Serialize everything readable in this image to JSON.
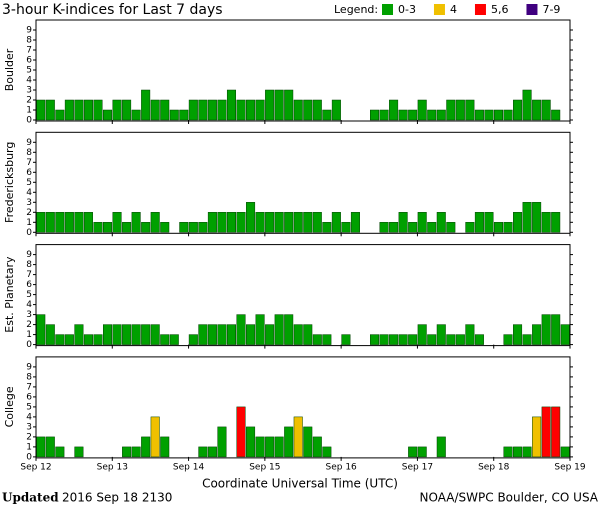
{
  "title": "3-hour K-indices for Last 7 days",
  "legend": {
    "title": "Legend:",
    "items": [
      {
        "label": "0-3",
        "color": "#00a000",
        "levels": [
          0,
          1,
          2,
          3
        ]
      },
      {
        "label": "4",
        "color": "#f0c000",
        "levels": [
          4
        ]
      },
      {
        "label": "5,6",
        "color": "#ff0000",
        "levels": [
          5,
          6
        ]
      },
      {
        "label": "7-9",
        "color": "#400080",
        "levels": [
          7,
          8,
          9
        ]
      }
    ]
  },
  "x_axis": {
    "ticks": [
      "Sep 12",
      "Sep 13",
      "Sep 14",
      "Sep 15",
      "Sep 16",
      "Sep 17",
      "Sep 18",
      "Sep 19"
    ],
    "xlabel": "Coordinate Universal Time (UTC)"
  },
  "chart_data": [
    {
      "type": "bar",
      "ylabel": "Boulder",
      "ylim": [
        0,
        9
      ],
      "yticks": [
        0,
        1,
        2,
        3,
        4,
        5,
        6,
        7,
        8,
        9
      ],
      "values": [
        2,
        2,
        1,
        2,
        2,
        2,
        2,
        1,
        2,
        2,
        1,
        3,
        2,
        2,
        1,
        1,
        2,
        2,
        2,
        2,
        3,
        2,
        2,
        2,
        3,
        3,
        3,
        2,
        2,
        2,
        1,
        2,
        0,
        0,
        0,
        1,
        1,
        2,
        1,
        1,
        2,
        1,
        1,
        2,
        2,
        2,
        1,
        1,
        1,
        1,
        2,
        3,
        2,
        2,
        1,
        0
      ]
    },
    {
      "type": "bar",
      "ylabel": "Fredericksburg",
      "ylim": [
        0,
        9
      ],
      "yticks": [
        0,
        1,
        2,
        3,
        4,
        5,
        6,
        7,
        8,
        9
      ],
      "values": [
        2,
        2,
        2,
        2,
        2,
        2,
        1,
        1,
        2,
        1,
        2,
        1,
        2,
        1,
        0,
        1,
        1,
        1,
        2,
        2,
        2,
        2,
        3,
        2,
        2,
        2,
        2,
        2,
        2,
        2,
        1,
        2,
        1,
        2,
        0,
        0,
        1,
        1,
        2,
        1,
        2,
        1,
        2,
        1,
        0,
        1,
        2,
        2,
        1,
        1,
        2,
        3,
        3,
        2,
        2,
        0
      ]
    },
    {
      "type": "bar",
      "ylabel": "Est. Planetary",
      "ylim": [
        0,
        9
      ],
      "yticks": [
        0,
        1,
        2,
        3,
        4,
        5,
        6,
        7,
        8,
        9
      ],
      "values": [
        3,
        2,
        1,
        1,
        2,
        1,
        1,
        2,
        2,
        2,
        2,
        2,
        2,
        1,
        1,
        0,
        1,
        2,
        2,
        2,
        2,
        3,
        2,
        3,
        2,
        3,
        3,
        2,
        2,
        1,
        1,
        0,
        1,
        0,
        0,
        1,
        1,
        1,
        1,
        1,
        2,
        1,
        2,
        1,
        1,
        2,
        1,
        0,
        0,
        1,
        2,
        1,
        2,
        3,
        3,
        2
      ]
    },
    {
      "type": "bar",
      "ylabel": "College",
      "ylim": [
        0,
        9
      ],
      "yticks": [
        0,
        1,
        2,
        3,
        4,
        5,
        6,
        7,
        8,
        9
      ],
      "values": [
        2,
        2,
        1,
        0,
        1,
        0,
        0,
        0,
        0,
        1,
        1,
        2,
        4,
        2,
        0,
        0,
        0,
        1,
        1,
        3,
        0,
        5,
        3,
        2,
        2,
        2,
        3,
        4,
        3,
        2,
        1,
        0,
        0,
        0,
        0,
        0,
        0,
        0,
        0,
        1,
        1,
        0,
        2,
        0,
        0,
        0,
        0,
        0,
        0,
        1,
        1,
        1,
        4,
        5,
        5,
        1
      ]
    }
  ],
  "footer": {
    "updated_label": "Updated",
    "updated": "2016 Sep 18 2130",
    "credit": "NOAA/SWPC Boulder, CO USA"
  }
}
